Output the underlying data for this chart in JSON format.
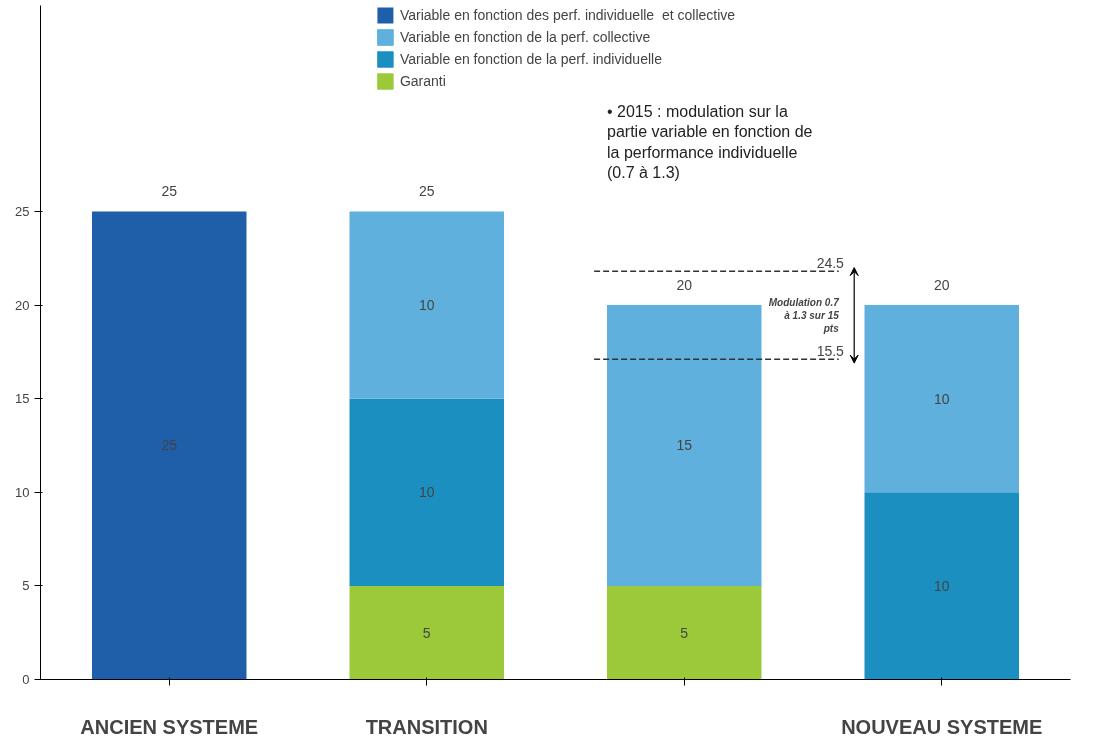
{
  "chart_data": {
    "type": "bar",
    "stacked": true,
    "categories": [
      "ANCIEN SYSTEME",
      "TRANSITION",
      null,
      "NOUVEAU SYSTEME"
    ],
    "series": [
      {
        "name": "Garanti",
        "color": "#9cc93a",
        "values": [
          null,
          5,
          5,
          null
        ]
      },
      {
        "name": "Variable en fonction de la perf. individuelle",
        "color": "#1b8fc0",
        "values": [
          null,
          10,
          null,
          10
        ]
      },
      {
        "name": "Variable en fonction de la perf. collective",
        "color": "#5fb0dc",
        "values": [
          null,
          10,
          15,
          10
        ]
      },
      {
        "name": "Variable en fonction des perf. individuelle  et collective",
        "color": "#1f5ea8",
        "values": [
          25,
          null,
          null,
          null
        ]
      }
    ],
    "data_labels": true,
    "totals": [
      "25",
      "25",
      "20",
      "20"
    ],
    "ylim": [
      0,
      36
    ],
    "yticks": [
      0,
      5,
      10,
      15,
      20,
      25
    ],
    "grid": false,
    "legend": "top",
    "annotations": [
      "• 2015 : modulation sur la partie variable en fonction de la performance individuelle (0.7 à 1.3)",
      "24.5",
      "15.5",
      "Modulation 0.7 à 1.3 sur 15 pts"
    ]
  }
}
